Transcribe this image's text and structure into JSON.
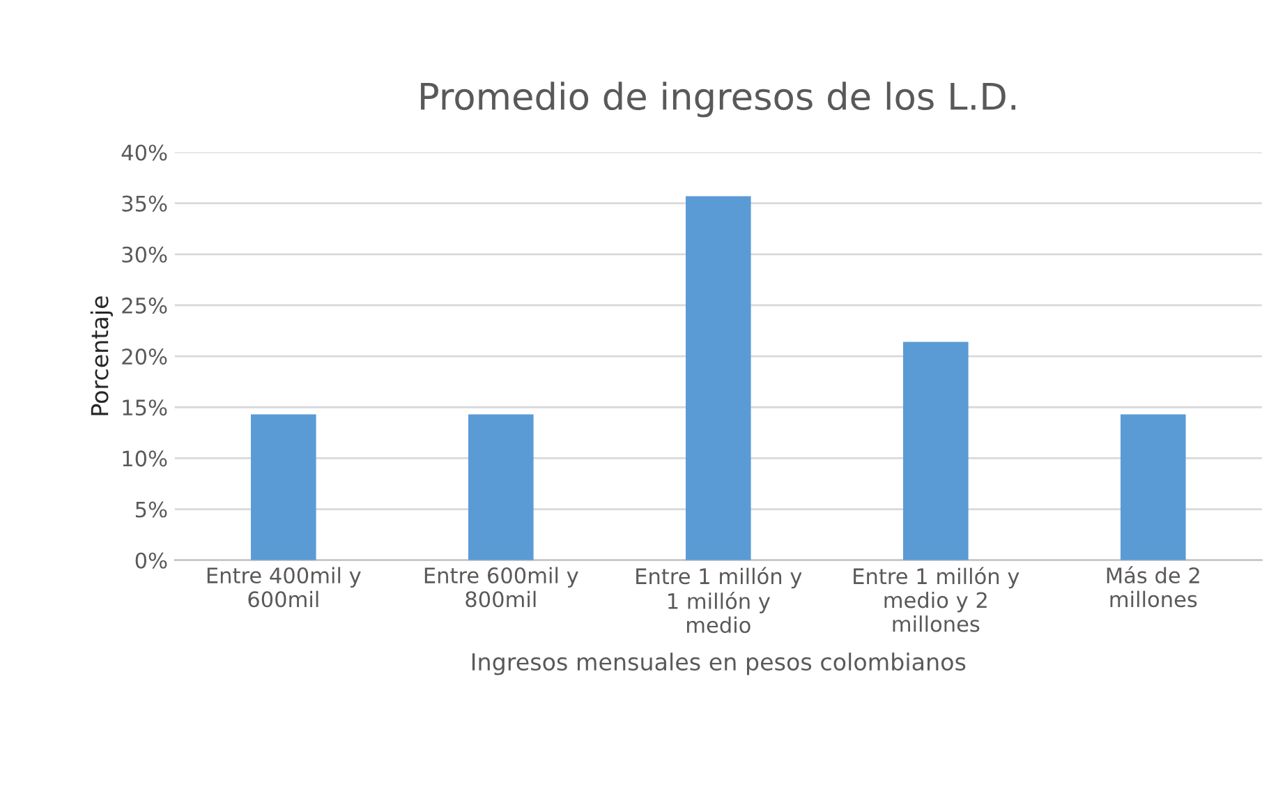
{
  "chart_data": {
    "type": "bar",
    "title": "Promedio de ingresos de los L.D.",
    "xlabel": "Ingresos mensuales en pesos colombianos",
    "ylabel": "Porcentaje",
    "categories": [
      "Entre 400mil y\n600mil",
      "Entre 600mil y\n800mil",
      "Entre 1 millón y\n1 millón y\nmedio",
      "Entre 1 millón y\nmedio y 2\nmillones",
      "Más de 2\nmillones"
    ],
    "values": [
      14.3,
      14.3,
      35.7,
      21.4,
      14.3
    ],
    "color": "#5b9bd5",
    "ylim": [
      0,
      40
    ],
    "yticks": [
      {
        "value": 0,
        "label": "0%"
      },
      {
        "value": 5,
        "label": "5%"
      },
      {
        "value": 10,
        "label": "10%"
      },
      {
        "value": 15,
        "label": "15%"
      },
      {
        "value": 20,
        "label": "20%"
      },
      {
        "value": 25,
        "label": "25%"
      },
      {
        "value": 30,
        "label": "30%"
      },
      {
        "value": 35,
        "label": "35%"
      },
      {
        "value": 40,
        "label": "40%"
      }
    ],
    "grid": "y"
  }
}
